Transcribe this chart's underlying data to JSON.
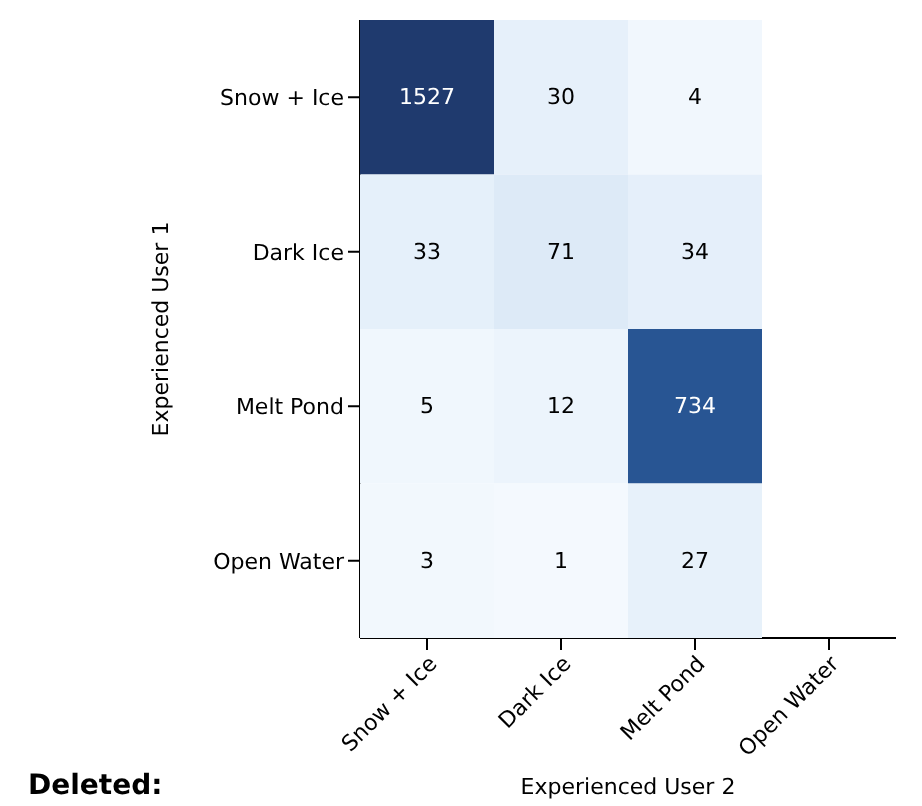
{
  "chart_data": {
    "type": "heatmap",
    "xlabel": "Experienced User 2",
    "ylabel": "Experienced User 1",
    "categories": [
      "Snow + Ice",
      "Dark Ice",
      "Melt Pond",
      "Open Water"
    ],
    "y_categories": [
      "Snow + Ice",
      "Dark Ice",
      "Melt Pond",
      "Open Water"
    ],
    "cells": [
      [
        1527,
        30,
        4,
        null
      ],
      [
        33,
        71,
        34,
        null
      ],
      [
        5,
        12,
        734,
        null
      ],
      [
        3,
        1,
        27,
        null
      ]
    ],
    "data_labels": true,
    "annotations": [
      "Deleted:"
    ]
  }
}
